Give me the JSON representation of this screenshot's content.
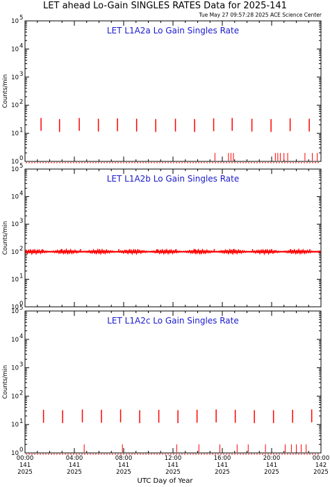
{
  "header": {
    "title": "LET ahead Lo-Gain SINGLES RATES Data for 2025-141",
    "timestamp": "Tue May 27 09:57:28 2025 ACE Science Center"
  },
  "x_axis_title": "UTC Day of Year",
  "colors": {
    "series": "#ff0000",
    "panel_title": "#1a1acc",
    "frame": "#000000"
  },
  "chart_data": [
    {
      "type": "line",
      "title": "LET L1A2a Lo Gain Singles Rate",
      "ylabel": "Counts/min",
      "yscale": "log",
      "ylim": [
        1,
        100000
      ],
      "xlim": [
        0,
        24
      ],
      "y_ticks": [
        {
          "label": "10",
          "exp": "0"
        },
        {
          "label": "10",
          "exp": "1"
        },
        {
          "label": "10",
          "exp": "2"
        },
        {
          "label": "10",
          "exp": "3"
        },
        {
          "label": "10",
          "exp": "4"
        },
        {
          "label": "10",
          "exp": "5"
        }
      ],
      "baseline": 0.9,
      "spikes": [
        {
          "x": 1.3,
          "y": 35
        },
        {
          "x": 2.8,
          "y": 32
        },
        {
          "x": 4.4,
          "y": 35
        },
        {
          "x": 5.95,
          "y": 33
        },
        {
          "x": 7.5,
          "y": 34
        },
        {
          "x": 9.05,
          "y": 33
        },
        {
          "x": 10.6,
          "y": 32
        },
        {
          "x": 12.2,
          "y": 33
        },
        {
          "x": 13.75,
          "y": 32
        },
        {
          "x": 15.3,
          "y": 34
        },
        {
          "x": 16.8,
          "y": 35
        },
        {
          "x": 18.4,
          "y": 33
        },
        {
          "x": 19.95,
          "y": 32
        },
        {
          "x": 21.5,
          "y": 34
        },
        {
          "x": 23.05,
          "y": 33
        }
      ],
      "dips": [
        15.4,
        16.5,
        16.7,
        16.9,
        20.3,
        20.5,
        20.7,
        21.0,
        21.3,
        22.7,
        23.3,
        23.7
      ]
    },
    {
      "type": "line",
      "title": "LET L1A2b Lo Gain Singles Rate",
      "ylabel": "Counts/min",
      "yscale": "log",
      "ylim": [
        1,
        100000
      ],
      "xlim": [
        0,
        24
      ],
      "y_ticks": [
        {
          "label": "10",
          "exp": "0"
        },
        {
          "label": "10",
          "exp": "1"
        },
        {
          "label": "10",
          "exp": "2"
        },
        {
          "label": "10",
          "exp": "3"
        },
        {
          "label": "10",
          "exp": "4"
        },
        {
          "label": "10",
          "exp": "5"
        }
      ],
      "baseline": 100,
      "spikes": [
        {
          "x": 1.4,
          "y": 125
        },
        {
          "x": 2.95,
          "y": 125
        },
        {
          "x": 4.5,
          "y": 125
        },
        {
          "x": 6.05,
          "y": 125
        },
        {
          "x": 7.6,
          "y": 125
        },
        {
          "x": 9.15,
          "y": 125
        },
        {
          "x": 10.7,
          "y": 125
        },
        {
          "x": 12.25,
          "y": 125
        },
        {
          "x": 13.8,
          "y": 125
        },
        {
          "x": 15.35,
          "y": 125
        },
        {
          "x": 16.9,
          "y": 125
        },
        {
          "x": 18.45,
          "y": 125
        },
        {
          "x": 20.0,
          "y": 125
        },
        {
          "x": 21.55,
          "y": 125
        },
        {
          "x": 23.1,
          "y": 125
        }
      ],
      "dips": []
    },
    {
      "type": "line",
      "title": "LET L1A2c Lo Gain Singles Rate",
      "ylabel": "Counts/min",
      "yscale": "log",
      "ylim": [
        1,
        100000
      ],
      "xlim": [
        0,
        24
      ],
      "y_ticks": [
        {
          "label": "10",
          "exp": "0"
        },
        {
          "label": "10",
          "exp": "1"
        },
        {
          "label": "10",
          "exp": "2"
        },
        {
          "label": "10",
          "exp": "3"
        },
        {
          "label": "10",
          "exp": "4"
        },
        {
          "label": "10",
          "exp": "5"
        }
      ],
      "baseline": 0.9,
      "spikes": [
        {
          "x": 1.5,
          "y": 33
        },
        {
          "x": 3.05,
          "y": 32
        },
        {
          "x": 4.65,
          "y": 34
        },
        {
          "x": 6.2,
          "y": 33
        },
        {
          "x": 7.75,
          "y": 34
        },
        {
          "x": 9.3,
          "y": 32
        },
        {
          "x": 10.85,
          "y": 33
        },
        {
          "x": 12.4,
          "y": 32
        },
        {
          "x": 13.95,
          "y": 33
        },
        {
          "x": 15.5,
          "y": 34
        },
        {
          "x": 17.05,
          "y": 33
        },
        {
          "x": 18.6,
          "y": 32
        },
        {
          "x": 20.15,
          "y": 32
        },
        {
          "x": 21.7,
          "y": 33
        },
        {
          "x": 23.25,
          "y": 34
        }
      ],
      "dips": [
        4.8,
        7.9,
        12.3,
        14.1,
        15.8,
        17.2,
        18.1,
        19.5,
        21.1,
        21.6,
        22.0,
        22.4,
        22.8
      ]
    }
  ],
  "x_ticks": [
    {
      "hh": "00:00",
      "doy": "141",
      "year": "2025",
      "x": 0
    },
    {
      "hh": "04:00",
      "doy": "141",
      "year": "2025",
      "x": 4
    },
    {
      "hh": "08:00",
      "doy": "141",
      "year": "2025",
      "x": 8
    },
    {
      "hh": "12:00",
      "doy": "141",
      "year": "2025",
      "x": 12
    },
    {
      "hh": "16:00",
      "doy": "141",
      "year": "2025",
      "x": 16
    },
    {
      "hh": "20:00",
      "doy": "141",
      "year": "2025",
      "x": 20
    },
    {
      "hh": "00:00",
      "doy": "142",
      "year": "2025",
      "x": 24
    }
  ]
}
